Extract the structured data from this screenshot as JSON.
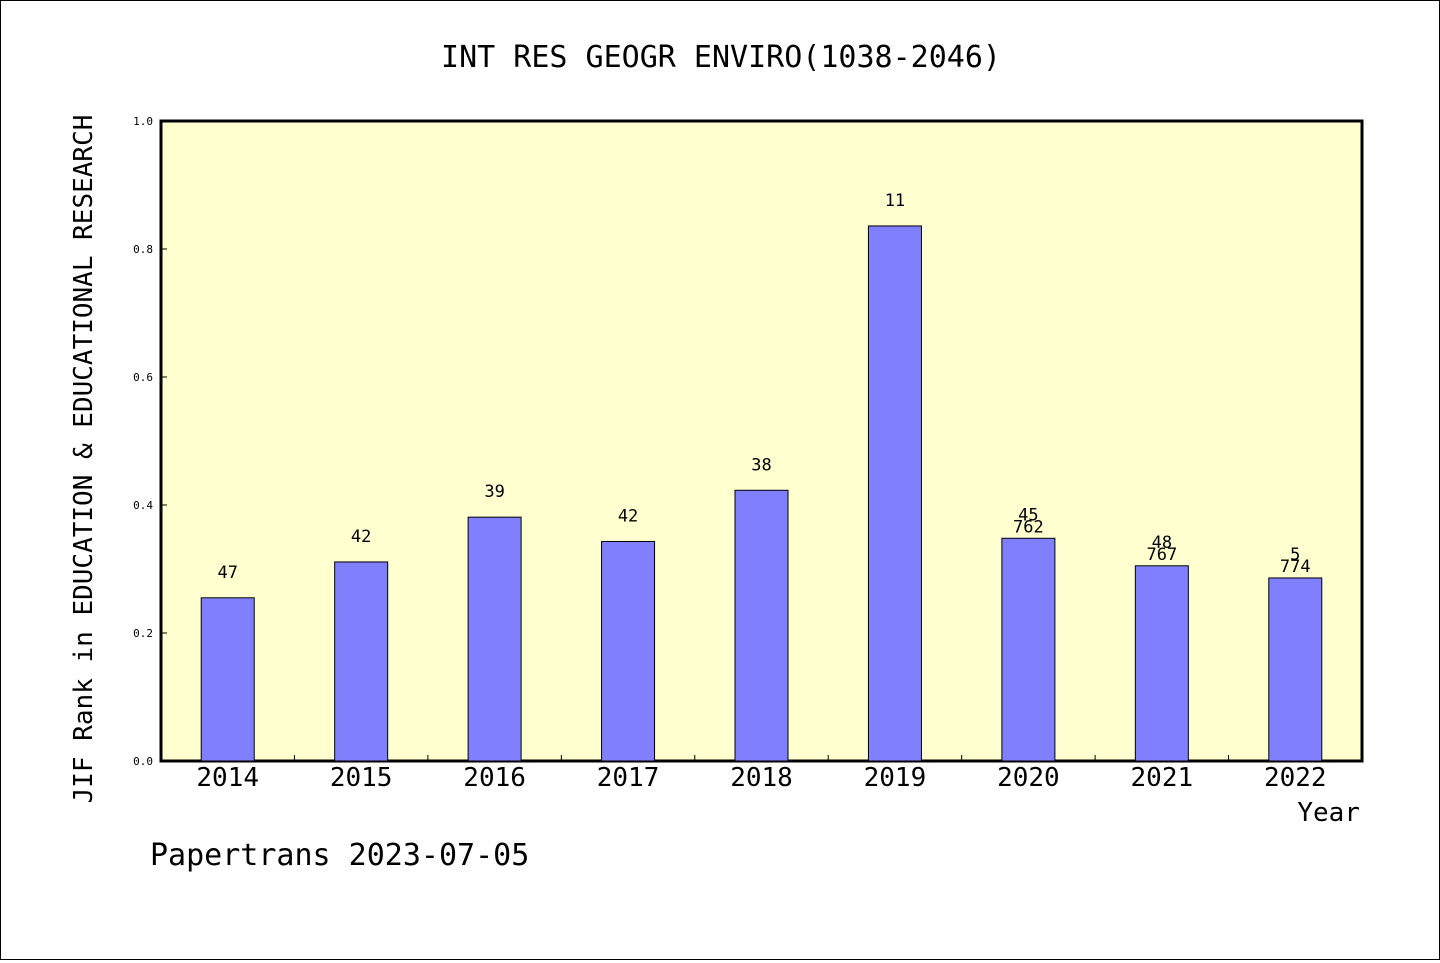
{
  "chart_data": {
    "type": "bar",
    "title": "INT RES GEOGR ENVIRO(1038-2046)",
    "xlabel": "Year",
    "ylabel": "JIF Rank in EDUCATION & EDUCATIONAL RESEARCH",
    "ylim": [
      0,
      1.0
    ],
    "yticks": [
      "0.0",
      "0.2",
      "0.4",
      "0.6",
      "0.8",
      "1.0"
    ],
    "categories": [
      "2014",
      "2015",
      "2016",
      "2017",
      "2018",
      "2019",
      "2020",
      "2021",
      "2022"
    ],
    "values": [
      0.255,
      0.311,
      0.381,
      0.343,
      0.423,
      0.836,
      0.348,
      0.305,
      0.286
    ],
    "bar_labels": [
      [
        "47"
      ],
      [
        "42"
      ],
      [
        "39"
      ],
      [
        "42"
      ],
      [
        "38"
      ],
      [
        "11"
      ],
      [
        "45",
        "762"
      ],
      [
        "48",
        "767"
      ],
      [
        "5",
        "774"
      ]
    ],
    "grid": false,
    "colors": {
      "bar": "#8080ff",
      "plot_bg": "#ffffd0"
    }
  },
  "footer": "Papertrans 2023-07-05"
}
